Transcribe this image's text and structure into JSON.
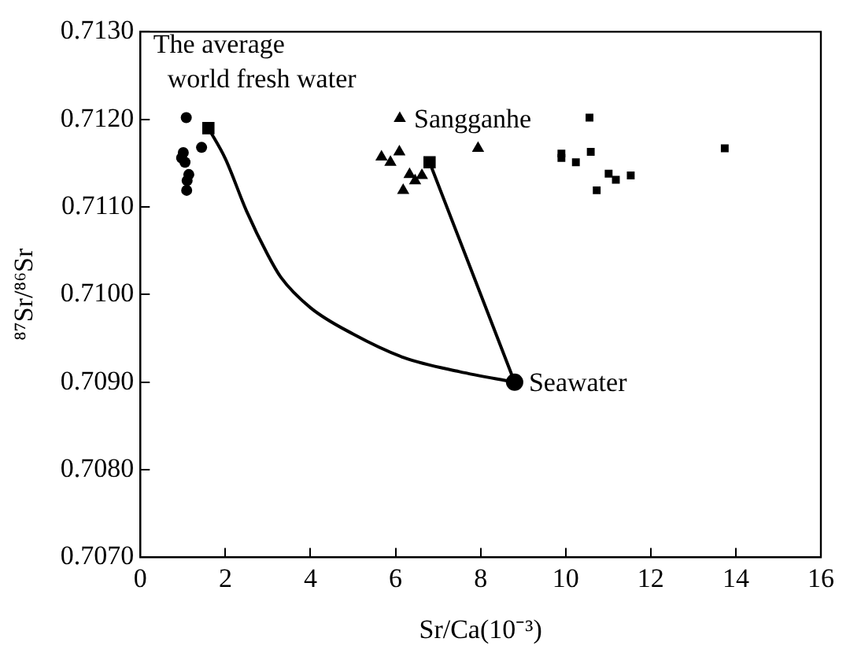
{
  "chart_data": {
    "type": "scatter",
    "xlabel": "Sr/Ca(10⁻³)",
    "ylabel": "⁸⁷Sr/⁸⁶Sr",
    "xlim": [
      0,
      16
    ],
    "xticks": [
      0,
      2,
      4,
      6,
      8,
      10,
      12,
      14,
      16
    ],
    "ylim": [
      0.707,
      0.713
    ],
    "yticks": [
      {
        "value": 0.707,
        "label": "0.7070"
      },
      {
        "value": 0.708,
        "label": "0.7080"
      },
      {
        "value": 0.709,
        "label": "0.7090"
      },
      {
        "value": 0.71,
        "label": "0.7100"
      },
      {
        "value": 0.711,
        "label": "0.7110"
      },
      {
        "value": 0.712,
        "label": "0.7120"
      },
      {
        "value": 0.713,
        "label": "0.7130"
      }
    ],
    "grid": false,
    "legend": false,
    "series": [
      {
        "type": "line",
        "marker": "none",
        "color": "#000000",
        "x": [
          1.6,
          2.0,
          2.5,
          3.0,
          3.3,
          4.0,
          5.0,
          6.2,
          7.5,
          8.8
        ],
        "values": [
          0.7119,
          0.71155,
          0.71095,
          0.71045,
          0.7102,
          0.70985,
          0.70955,
          0.70928,
          0.70912,
          0.709
        ]
      },
      {
        "type": "line",
        "marker": "none",
        "color": "#000000",
        "x": [
          6.8,
          8.8
        ],
        "values": [
          0.71151,
          0.709
        ]
      },
      {
        "type": "scatter",
        "marker": "circle",
        "color": "#000000",
        "x": [
          1.08,
          1.44,
          1.01,
          0.97,
          1.05,
          1.14,
          1.1,
          1.09
        ],
        "values": [
          0.71202,
          0.71168,
          0.71162,
          0.71156,
          0.71151,
          0.71137,
          0.7113,
          0.71119
        ]
      },
      {
        "type": "scatter",
        "marker": "triangle",
        "color": "#000000",
        "x": [
          6.1,
          7.94,
          5.67,
          6.09,
          5.88,
          6.33,
          6.62,
          6.46,
          6.18
        ],
        "values": [
          0.71201,
          0.71167,
          0.71157,
          0.71163,
          0.71151,
          0.71137,
          0.71136,
          0.7113,
          0.71119
        ]
      },
      {
        "type": "scatter",
        "marker": "square",
        "color": "#000000",
        "x": [
          10.56,
          13.74,
          9.9,
          9.9,
          10.24,
          10.59,
          11.01,
          11.18,
          11.53,
          10.73
        ],
        "values": [
          0.71202,
          0.71167,
          0.71161,
          0.71156,
          0.71151,
          0.71163,
          0.71138,
          0.71131,
          0.71136,
          0.71119
        ]
      },
      {
        "type": "scatter",
        "marker": "square",
        "color": "#000000",
        "x": [
          1.6
        ],
        "values": [
          0.7119
        ]
      },
      {
        "type": "scatter",
        "marker": "square",
        "color": "#000000",
        "x": [
          6.8
        ],
        "values": [
          0.71151
        ]
      },
      {
        "type": "scatter",
        "marker": "circle",
        "color": "#000000",
        "x": [
          8.8
        ],
        "values": [
          0.709
        ]
      }
    ],
    "annotations": [
      {
        "text": "The average\nworld fresh water",
        "x": 1.6,
        "y": 0.7119
      },
      {
        "text": "Sangganhe",
        "x": 6.1,
        "y": 0.71201
      },
      {
        "text": "Seawater",
        "x": 8.8,
        "y": 0.709
      }
    ]
  }
}
